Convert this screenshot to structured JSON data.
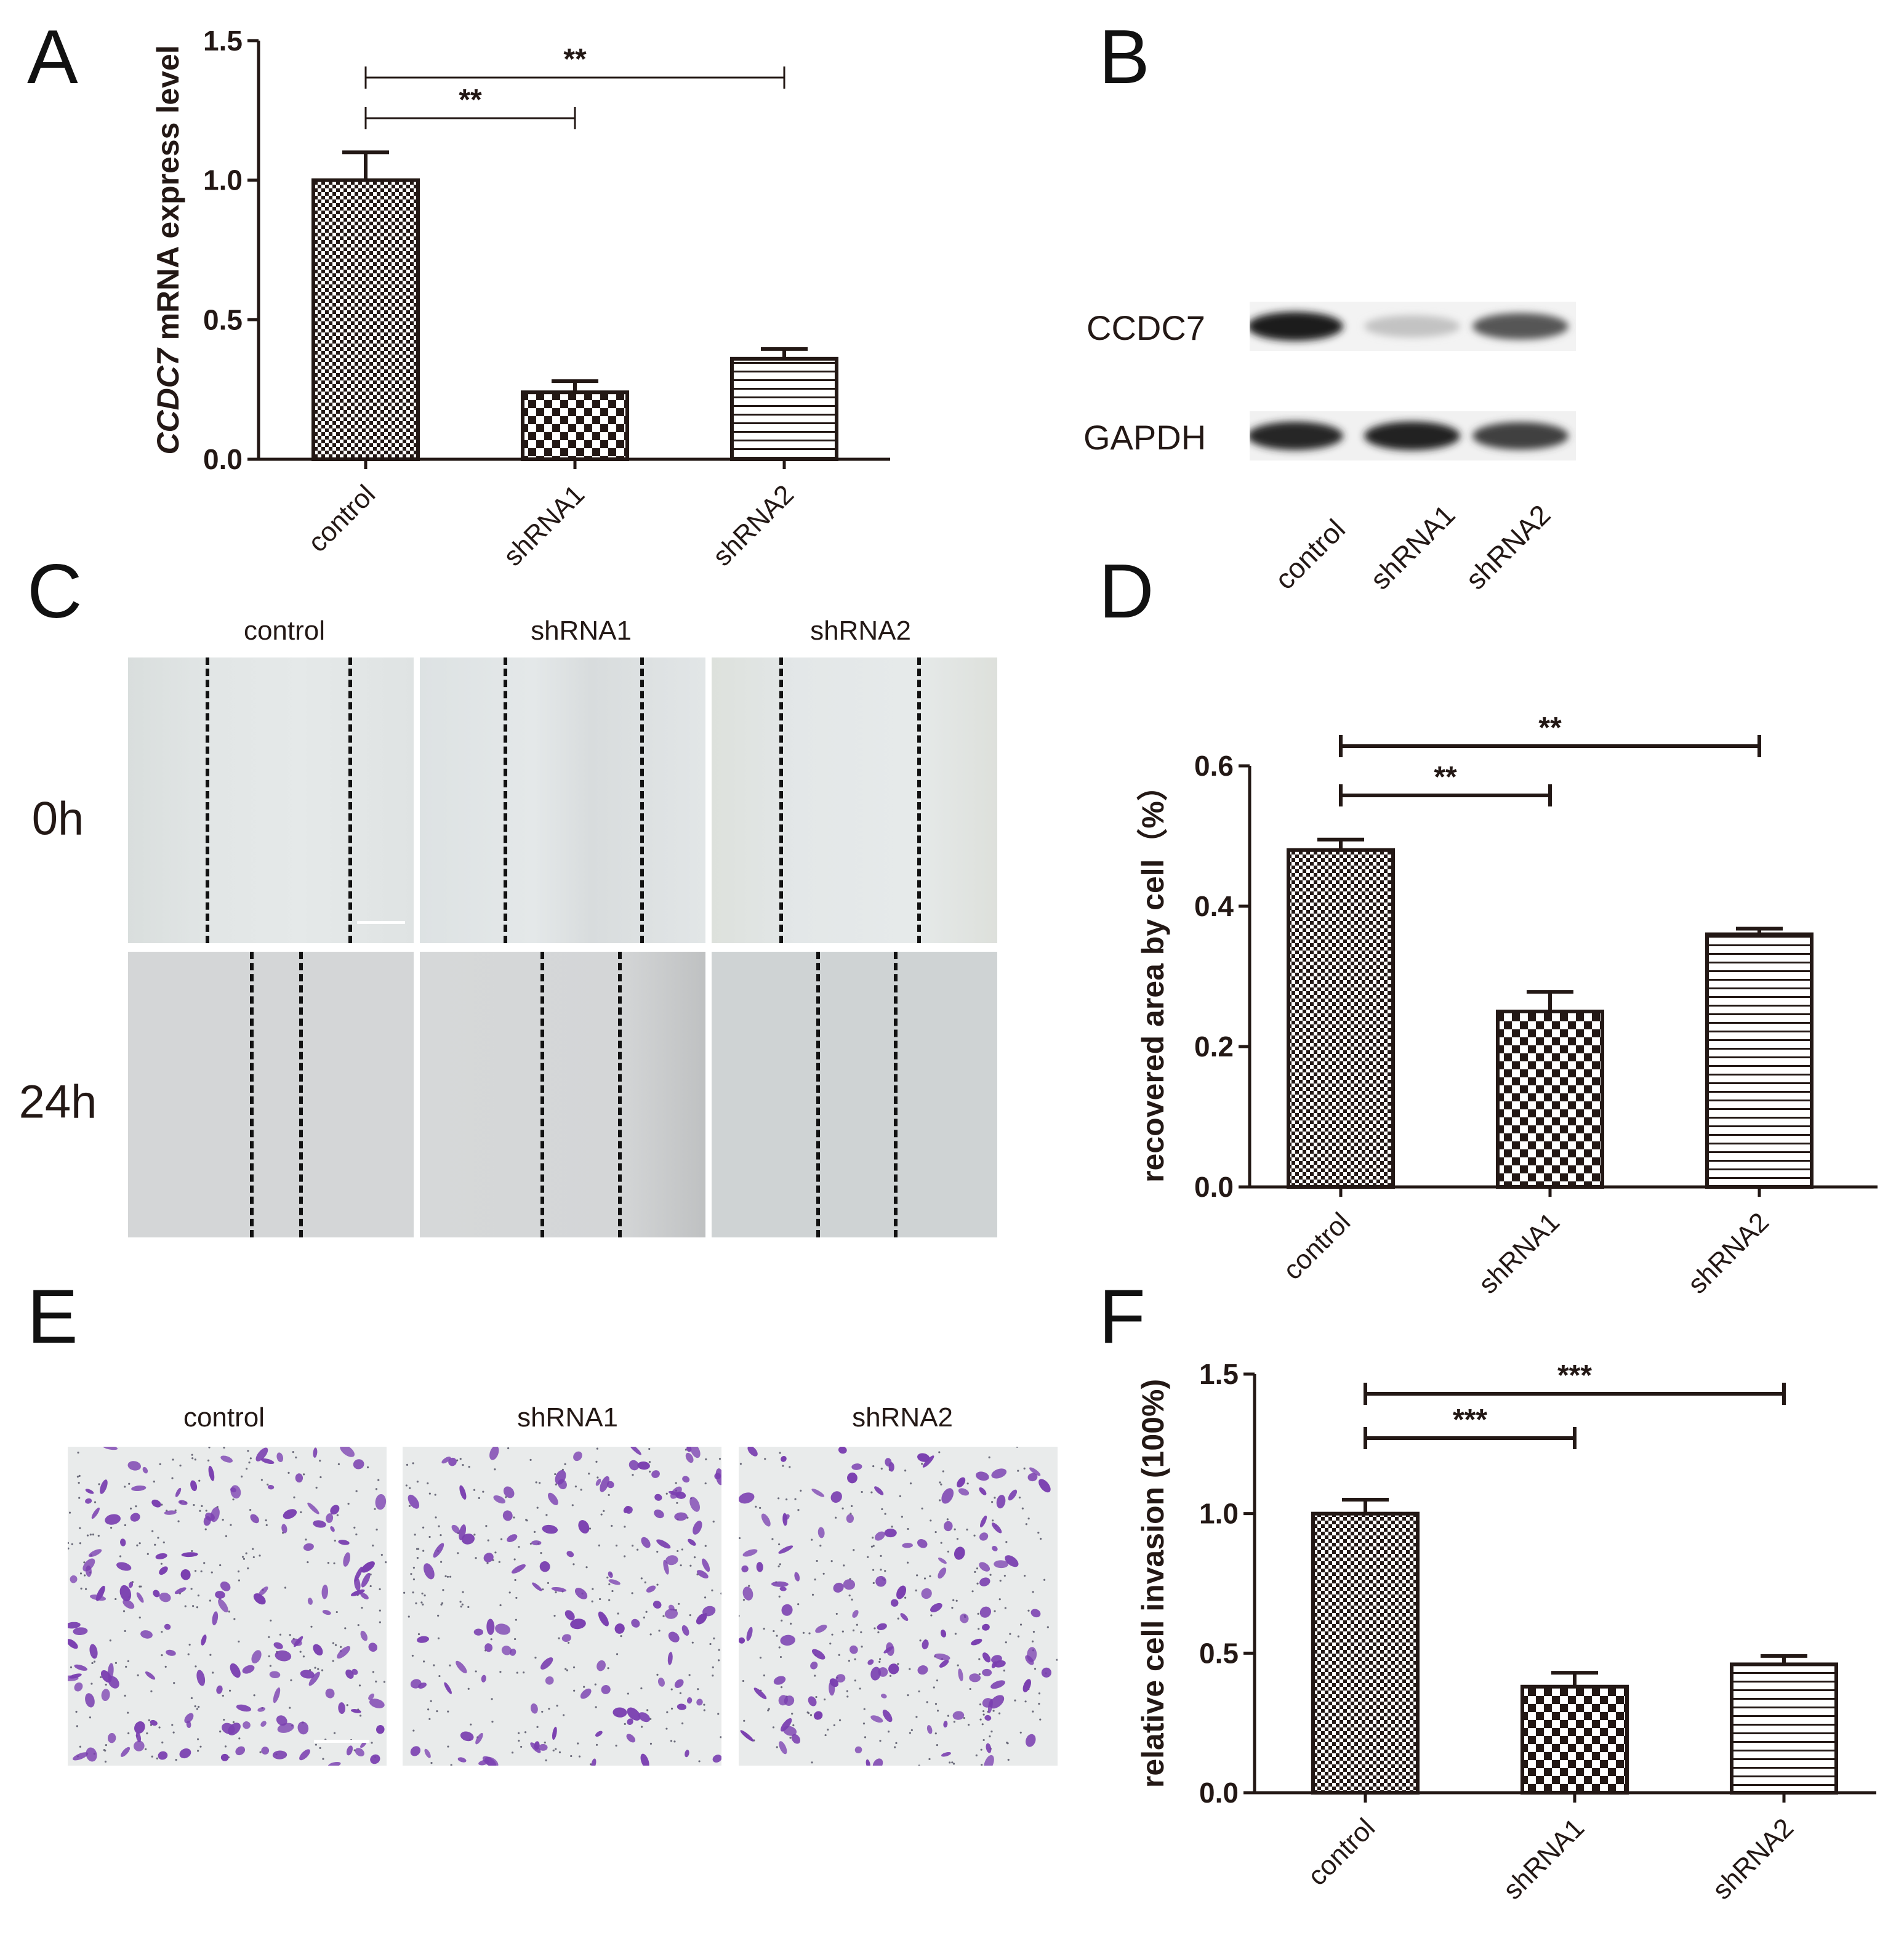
{
  "panels": {
    "A": "A",
    "B": "B",
    "C": "C",
    "D": "D",
    "E": "E",
    "F": "F"
  },
  "colors": {
    "ink": "#231815",
    "violet": "#7a3fb0",
    "field_c": "#dcdfe0",
    "field_e": "#e9ebeb"
  },
  "chart_data": [
    {
      "id": "A",
      "type": "bar",
      "categories": [
        "control",
        "shRNA1",
        "shRNA2"
      ],
      "values": [
        1.0,
        0.24,
        0.36
      ],
      "errors": [
        0.1,
        0.04,
        0.035
      ],
      "patterns": [
        "fine-check",
        "coarse-check",
        "horizontal-lines"
      ],
      "ylabel_italic": "CCDC7",
      "ylabel_rest": " mRNA express level",
      "ylim": [
        0,
        1.5
      ],
      "yticks": [
        "0.0",
        "0.5",
        "1.0",
        "1.5"
      ],
      "ytick_values": [
        0,
        0.5,
        1.0,
        1.5
      ],
      "significance": [
        {
          "from": 0,
          "to": 1,
          "label": "**"
        },
        {
          "from": 0,
          "to": 2,
          "label": "**"
        }
      ]
    },
    {
      "id": "D",
      "type": "bar",
      "categories": [
        "control",
        "shRNA1",
        "shRNA2"
      ],
      "values": [
        0.48,
        0.25,
        0.36
      ],
      "errors": [
        0.015,
        0.028,
        0.008
      ],
      "patterns": [
        "fine-check",
        "coarse-check",
        "horizontal-lines"
      ],
      "ylabel": "recovered area by cell（%）",
      "ylim": [
        0,
        0.6
      ],
      "yticks": [
        "0.0",
        "0.2",
        "0.4",
        "0.6"
      ],
      "ytick_values": [
        0,
        0.2,
        0.4,
        0.6
      ],
      "significance": [
        {
          "from": 0,
          "to": 1,
          "label": "**"
        },
        {
          "from": 0,
          "to": 2,
          "label": "**"
        }
      ]
    },
    {
      "id": "F",
      "type": "bar",
      "categories": [
        "control",
        "shRNA1",
        "shRNA2"
      ],
      "values": [
        1.0,
        0.38,
        0.46
      ],
      "errors": [
        0.05,
        0.05,
        0.03
      ],
      "patterns": [
        "fine-check",
        "coarse-check",
        "horizontal-lines"
      ],
      "ylabel": "relative cell invasion (100%)",
      "ylim": [
        0,
        1.5
      ],
      "yticks": [
        "0.0",
        "0.5",
        "1.0",
        "1.5"
      ],
      "ytick_values": [
        0,
        0.5,
        1.0,
        1.5
      ],
      "significance": [
        {
          "from": 0,
          "to": 1,
          "label": "***"
        },
        {
          "from": 0,
          "to": 2,
          "label": "***"
        }
      ]
    }
  ],
  "blot": {
    "rows": [
      "CCDC7",
      "GAPDH"
    ],
    "lanes": [
      "control",
      "shRNA1",
      "shRNA2"
    ],
    "intensity": [
      [
        0.95,
        0.25,
        0.7
      ],
      [
        0.9,
        0.92,
        0.8
      ]
    ]
  },
  "wound": {
    "columns": [
      "control",
      "shRNA1",
      "shRNA2"
    ],
    "rows": [
      "0h",
      "24h"
    ]
  },
  "invasion": {
    "columns": [
      "control",
      "shRNA1",
      "shRNA2"
    ]
  }
}
